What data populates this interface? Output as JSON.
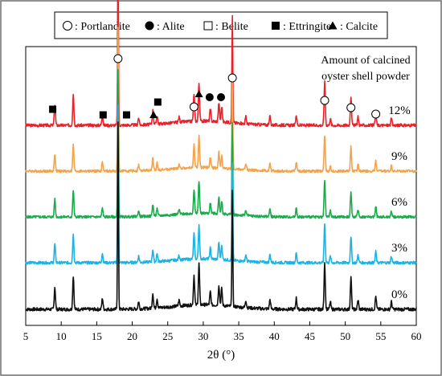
{
  "legend": {
    "items": [
      {
        "symbol": "open-circle",
        "label": "Portlandite"
      },
      {
        "symbol": "filled-circle",
        "label": "Alite"
      },
      {
        "symbol": "open-square",
        "label": "Belite"
      },
      {
        "symbol": "filled-square",
        "label": "Ettringite"
      },
      {
        "symbol": "filled-triangle",
        "label": "Calcite"
      }
    ]
  },
  "chart_data": {
    "type": "line",
    "title": "",
    "annotation_title": [
      "Amount of calcined",
      "oyster shell powder"
    ],
    "xlabel": "2θ (°)",
    "ylabel": "",
    "xlim": [
      5,
      60
    ],
    "xticks": [
      5,
      10,
      15,
      20,
      25,
      30,
      35,
      40,
      45,
      50,
      55,
      60
    ],
    "grid": false,
    "legend_position": "top",
    "series": [
      {
        "label": "12%",
        "color": "#e8212a",
        "offset": 4
      },
      {
        "label": "9%",
        "color": "#f5a24a",
        "offset": 3
      },
      {
        "label": "6%",
        "color": "#1aab4b",
        "offset": 2
      },
      {
        "label": "3%",
        "color": "#1ab3e6",
        "offset": 1
      },
      {
        "label": "0%",
        "color": "#111111",
        "offset": 0
      }
    ],
    "peaks": [
      {
        "x": 9.1,
        "h": 0.12
      },
      {
        "x": 11.7,
        "h": 0.18
      },
      {
        "x": 15.8,
        "h": 0.06
      },
      {
        "x": 18.0,
        "h": 1.0
      },
      {
        "x": 20.9,
        "h": 0.04
      },
      {
        "x": 22.9,
        "h": 0.08
      },
      {
        "x": 23.5,
        "h": 0.05
      },
      {
        "x": 26.6,
        "h": 0.03
      },
      {
        "x": 28.7,
        "h": 0.16
      },
      {
        "x": 29.4,
        "h": 0.22
      },
      {
        "x": 31.0,
        "h": 0.07
      },
      {
        "x": 32.2,
        "h": 0.11
      },
      {
        "x": 32.6,
        "h": 0.09
      },
      {
        "x": 34.1,
        "h": 0.62
      },
      {
        "x": 36.0,
        "h": 0.04
      },
      {
        "x": 39.4,
        "h": 0.05
      },
      {
        "x": 43.1,
        "h": 0.06
      },
      {
        "x": 47.1,
        "h": 0.25
      },
      {
        "x": 47.9,
        "h": 0.04
      },
      {
        "x": 50.8,
        "h": 0.17
      },
      {
        "x": 51.8,
        "h": 0.05
      },
      {
        "x": 54.3,
        "h": 0.07
      },
      {
        "x": 56.5,
        "h": 0.04
      }
    ],
    "phase_markers": [
      {
        "phase": "Ettringite",
        "symbol": "filled-square",
        "x": 8.8
      },
      {
        "phase": "Ettringite",
        "symbol": "filled-square",
        "x": 15.9
      },
      {
        "phase": "Ettringite",
        "symbol": "filled-square",
        "x": 19.2
      },
      {
        "phase": "Ettringite",
        "symbol": "filled-square",
        "x": 23.6
      },
      {
        "phase": "Calcite",
        "symbol": "filled-triangle",
        "x": 23.0
      },
      {
        "phase": "Calcite",
        "symbol": "filled-triangle",
        "x": 29.4
      },
      {
        "phase": "Portlandite",
        "symbol": "open-circle",
        "x": 18.0
      },
      {
        "phase": "Portlandite",
        "symbol": "open-circle",
        "x": 28.7
      },
      {
        "phase": "Portlandite",
        "symbol": "open-circle",
        "x": 34.1
      },
      {
        "phase": "Portlandite",
        "symbol": "open-circle",
        "x": 47.1
      },
      {
        "phase": "Portlandite",
        "symbol": "open-circle",
        "x": 50.8
      },
      {
        "phase": "Portlandite",
        "symbol": "open-circle",
        "x": 54.3
      },
      {
        "phase": "Alite",
        "symbol": "filled-circle",
        "x": 30.9
      },
      {
        "phase": "Alite",
        "symbol": "filled-circle",
        "x": 32.5
      }
    ]
  }
}
